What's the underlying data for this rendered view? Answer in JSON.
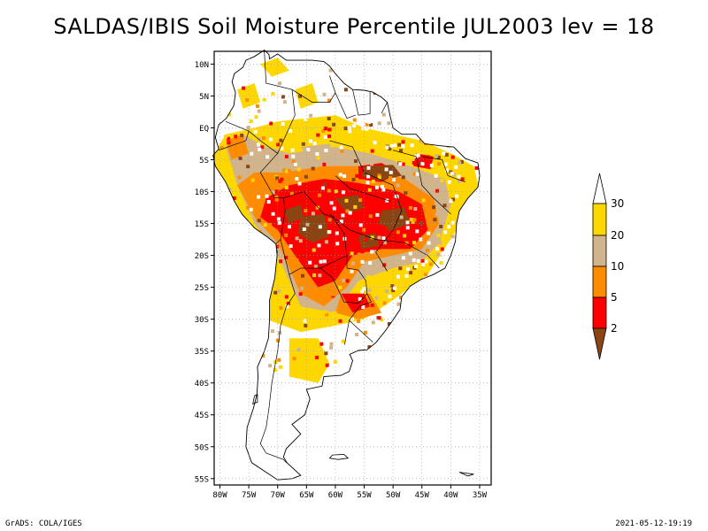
{
  "title": "SALDAS/IBIS Soil Moisture Percentile JUL2003 lev = 18",
  "footer": {
    "left": "GrADS: COLA/IGES",
    "right": "2021-05-12-19:19"
  },
  "map": {
    "lat_labels": [
      "10N",
      "5N",
      "EQ",
      "5S",
      "10S",
      "15S",
      "20S",
      "25S",
      "30S",
      "35S",
      "40S",
      "45S",
      "50S",
      "55S"
    ],
    "lon_labels": [
      "80W",
      "75W",
      "70W",
      "65W",
      "60W",
      "55W",
      "50W",
      "45W",
      "40W",
      "35W"
    ],
    "lat_range": [
      -56,
      12
    ],
    "lon_range": [
      -81,
      -33
    ],
    "grid": "dotted"
  },
  "legend": {
    "labels": [
      "2",
      "5",
      "10",
      "20",
      "30"
    ],
    "colors": {
      "below_2": "#8b4513",
      "2_5": "#ff0000",
      "5_10": "#ff8c00",
      "10_20": "#d2b48c",
      "20_30": "#ffd700",
      "above_30": "#ffffff"
    }
  }
}
